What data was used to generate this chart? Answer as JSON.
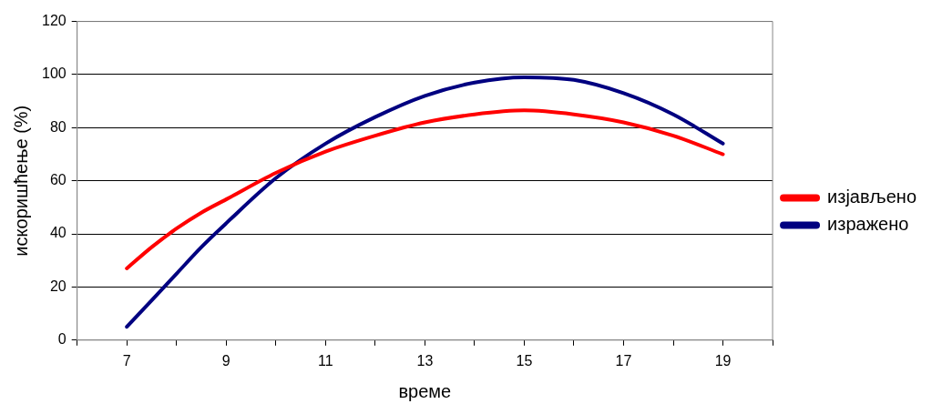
{
  "chart_data": {
    "type": "line",
    "xlabel": "време",
    "ylabel": "искоришћење (%)",
    "x": [
      7,
      7.5,
      8,
      8.5,
      9,
      10,
      11,
      12,
      13,
      14,
      15,
      16,
      17,
      18,
      19
    ],
    "series": [
      {
        "name": "изјављено",
        "color": "#ff0000",
        "values": [
          27,
          35,
          42,
          48,
          53,
          63,
          71,
          77,
          82,
          85,
          86.5,
          85,
          82,
          77,
          70
        ]
      },
      {
        "name": "изражено",
        "color": "#000080",
        "values": [
          5,
          15,
          25,
          35,
          44,
          61,
          74,
          84,
          92,
          97,
          99,
          98,
          93,
          85,
          74
        ]
      }
    ],
    "xlim": [
      6,
      20
    ],
    "xticks": [
      {
        "value": 6,
        "label": null
      },
      7,
      {
        "value": 8,
        "label": null
      },
      9,
      {
        "value": 10,
        "label": null
      },
      11,
      {
        "value": 12,
        "label": null
      },
      13,
      {
        "value": 14,
        "label": null
      },
      15,
      {
        "value": 16,
        "label": null
      },
      17,
      {
        "value": 18,
        "label": null
      },
      19,
      {
        "value": 20,
        "label": null
      }
    ],
    "ylim": [
      0,
      120
    ],
    "yticks": [
      0,
      20,
      40,
      60,
      80,
      100,
      120
    ],
    "grid": "y",
    "legend": "right",
    "marker": "none",
    "line_style": "solid"
  }
}
